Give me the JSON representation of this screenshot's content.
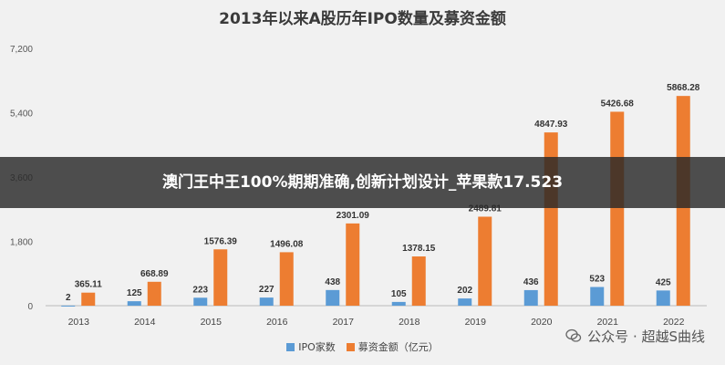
{
  "chart_data": {
    "type": "bar",
    "title": "2013年以来A股历年IPO数量及募资金额",
    "categories": [
      "2013",
      "2014",
      "2015",
      "2016",
      "2017",
      "2018",
      "2019",
      "2020",
      "2021",
      "2022"
    ],
    "series": [
      {
        "name": "IPO家数",
        "color": "#5b9bd5",
        "values": [
          2,
          125,
          223,
          227,
          438,
          105,
          202,
          436,
          523,
          425
        ]
      },
      {
        "name": "募资金额（亿元）",
        "color": "#ed7d31",
        "values": [
          365.11,
          668.89,
          1576.39,
          1496.08,
          2301.09,
          1378.15,
          2489.81,
          4847.93,
          5426.68,
          5868.28
        ]
      }
    ],
    "value_labels": {
      "count": [
        "2",
        "125",
        "223",
        "227",
        "438",
        "105",
        "202",
        "436",
        "523",
        "425"
      ],
      "amount": [
        "365.11",
        "668.89",
        "1576.39",
        "1496.08",
        "2301.09",
        "1378.15",
        "2489.81",
        "4847.93",
        "5426.68",
        "5868.28"
      ]
    },
    "yticks": [
      "0",
      "1,800",
      "3,600",
      "5,400",
      "7,200"
    ],
    "ylim": [
      0,
      7200
    ],
    "legend_position": "bottom",
    "grid": false
  },
  "overlay": {
    "banner_text": "澳门王中王100%期期准确,创新计划设计_苹果款17.523",
    "watermark_text": "公众号 · 超越S曲线"
  }
}
